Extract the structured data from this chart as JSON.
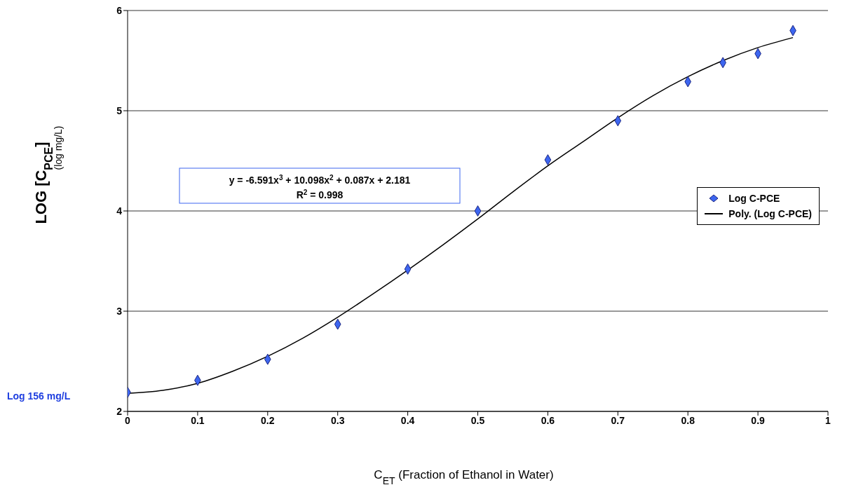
{
  "chart_data": {
    "type": "scatter",
    "xlabel": "C$_{ET}$  (Fraction of Ethanol in Water)",
    "ylabel": "LOG [C$_{PCE}$]",
    "xlim": [
      0,
      1
    ],
    "xticks": [
      0,
      0.1,
      0.2,
      0.3,
      0.4,
      0.5,
      0.6,
      0.7,
      0.8,
      0.9,
      1
    ],
    "ylim": [
      2,
      6
    ],
    "yticks": [
      2,
      3,
      4,
      5,
      6
    ],
    "grid": "y",
    "legend": "right",
    "series": [
      {
        "name": "Log C-PCE",
        "marker": "diamond",
        "color": "#3d66f0",
        "x": [
          0,
          0.1,
          0.2,
          0.3,
          0.4,
          0.5,
          0.6,
          0.7,
          0.8,
          0.85,
          0.9,
          0.95
        ],
        "values": [
          2.19,
          2.31,
          2.52,
          2.87,
          3.42,
          4.0,
          4.51,
          4.9,
          5.29,
          5.48,
          5.57,
          5.8
        ]
      },
      {
        "name": "Poly. (Log C-PCE)",
        "type": "line",
        "marker": "none",
        "color": "#000000",
        "x": [
          0,
          0.05,
          0.1,
          0.15,
          0.2,
          0.25,
          0.3,
          0.35,
          0.4,
          0.45,
          0.5,
          0.55,
          0.6,
          0.65,
          0.7,
          0.75,
          0.8,
          0.85,
          0.9,
          0.95
        ],
        "values": [
          2.18,
          2.21,
          2.28,
          2.4,
          2.55,
          2.73,
          2.94,
          3.17,
          3.41,
          3.66,
          3.92,
          4.19,
          4.45,
          4.69,
          4.93,
          5.15,
          5.34,
          5.5,
          5.63,
          5.73
        ]
      }
    ],
    "annotations": [
      "y = -6.591x$^{3}$ + 10.098x$^{2}$ + 0.087x + 2.181",
      "R$^{2}$ = 0.998",
      "(log mg/L)",
      "Log 156 mg/L"
    ]
  }
}
